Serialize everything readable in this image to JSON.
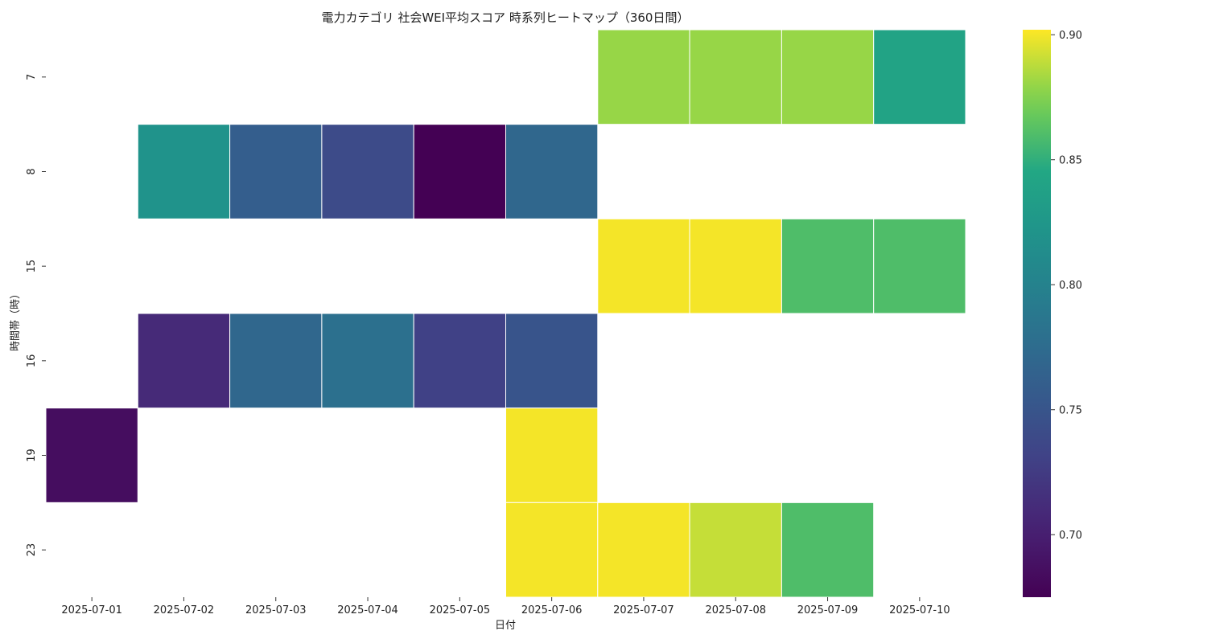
{
  "chart_data": {
    "type": "heatmap",
    "title": "電力カテゴリ 社会WEI平均スコア 時系列ヒートマップ（360日間）",
    "xlabel": "日付",
    "ylabel": "時間帯（時）",
    "x_categories": [
      "2025-07-01",
      "2025-07-02",
      "2025-07-03",
      "2025-07-04",
      "2025-07-05",
      "2025-07-06",
      "2025-07-07",
      "2025-07-08",
      "2025-07-09",
      "2025-07-10"
    ],
    "y_categories": [
      "7",
      "8",
      "15",
      "16",
      "19",
      "23"
    ],
    "values": [
      [
        null,
        null,
        null,
        null,
        null,
        null,
        0.88,
        0.88,
        0.88,
        0.84
      ],
      [
        null,
        0.82,
        0.76,
        0.74,
        0.675,
        0.77,
        null,
        null,
        null,
        null
      ],
      [
        null,
        null,
        null,
        null,
        null,
        null,
        0.9,
        0.9,
        0.86,
        0.86
      ],
      [
        null,
        0.71,
        0.77,
        0.78,
        0.73,
        0.75,
        null,
        null,
        null,
        null
      ],
      [
        0.685,
        null,
        null,
        null,
        null,
        0.9,
        null,
        null,
        null,
        null
      ],
      [
        null,
        null,
        null,
        null,
        null,
        0.9,
        0.9,
        0.89,
        0.86,
        null
      ]
    ],
    "colorbar": {
      "min": 0.675,
      "max": 0.902,
      "ticks": [
        0.7,
        0.75,
        0.8,
        0.85,
        0.9
      ],
      "tick_labels": [
        "0.70",
        "0.75",
        "0.80",
        "0.85",
        "0.90"
      ],
      "colormap": "viridis"
    },
    "grid": false,
    "legend": "colorbar-right"
  }
}
